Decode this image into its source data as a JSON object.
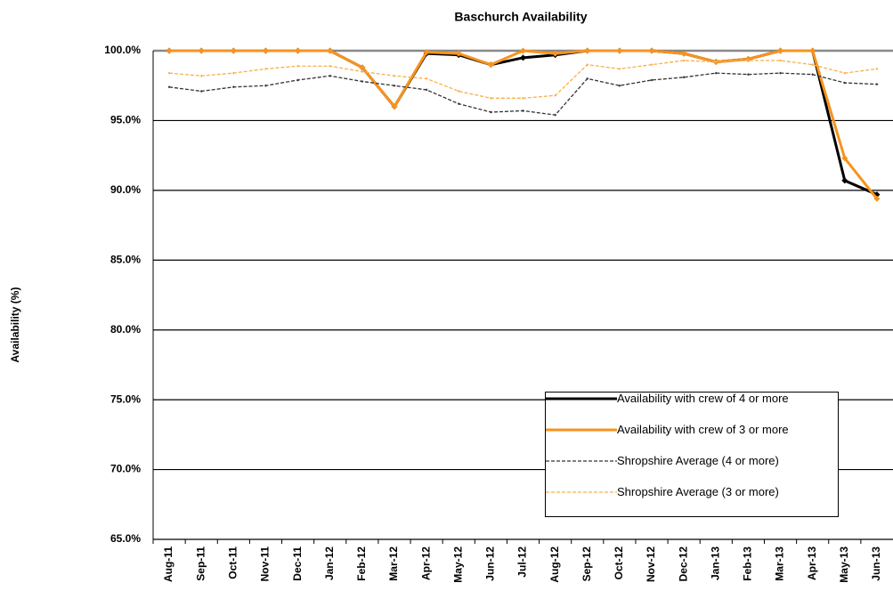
{
  "chart_data": {
    "type": "line",
    "title": "Baschurch Availability",
    "y_label": "Availability (%)",
    "categories": [
      "Aug-11",
      "Sep-11",
      "Oct-11",
      "Nov-11",
      "Dec-11",
      "Jan-12",
      "Feb-12",
      "Mar-12",
      "Apr-12",
      "May-12",
      "Jun-12",
      "Jul-12",
      "Aug-12",
      "Sep-12",
      "Oct-12",
      "Nov-12",
      "Dec-12",
      "Jan-13",
      "Feb-13",
      "Mar-13",
      "Apr-13",
      "May-13",
      "Jun-13"
    ],
    "series": [
      {
        "name": "Availability with crew of 4 or more",
        "color": "#000000",
        "dashed": false,
        "values": [
          100,
          100,
          100,
          100,
          100,
          100,
          98.8,
          96.0,
          99.8,
          99.7,
          99.0,
          99.5,
          99.7,
          100,
          100,
          100,
          99.8,
          99.2,
          99.4,
          100,
          100,
          90.7,
          89.7
        ]
      },
      {
        "name": "Availability with crew of 3 or more",
        "color": "#f7931e",
        "dashed": false,
        "values": [
          100,
          100,
          100,
          100,
          100,
          100,
          98.8,
          96.0,
          99.9,
          99.8,
          99.0,
          100,
          99.8,
          100,
          100,
          100,
          99.8,
          99.2,
          99.4,
          100,
          100,
          92.3,
          89.4
        ]
      },
      {
        "name": "Shropshire Average (4 or more)",
        "color": "#333333",
        "dashed": true,
        "values": [
          97.4,
          97.1,
          97.4,
          97.5,
          97.9,
          98.2,
          97.8,
          97.5,
          97.2,
          96.2,
          95.6,
          95.7,
          95.4,
          98.0,
          97.5,
          97.9,
          98.1,
          98.4,
          98.3,
          98.4,
          98.3,
          97.7,
          97.6
        ]
      },
      {
        "name": "Shropshire Average (3 or more)",
        "color": "#f7b04a",
        "dashed": true,
        "values": [
          98.4,
          98.2,
          98.4,
          98.7,
          98.9,
          98.9,
          98.5,
          98.2,
          98.0,
          97.1,
          96.6,
          96.6,
          96.8,
          99.0,
          98.7,
          99.0,
          99.3,
          99.2,
          99.3,
          99.3,
          99.0,
          98.4,
          98.7
        ]
      }
    ],
    "ylim": [
      65,
      100
    ],
    "yticks": [
      {
        "value": 65,
        "label": "65.0%"
      },
      {
        "value": 70,
        "label": "70.0%"
      },
      {
        "value": 75,
        "label": "75.0%"
      },
      {
        "value": 80,
        "label": "80.0%"
      },
      {
        "value": 85,
        "label": "85.0%"
      },
      {
        "value": 90,
        "label": "90.0%"
      },
      {
        "value": 95,
        "label": "95.0%"
      },
      {
        "value": 100,
        "label": "100.0%"
      }
    ],
    "grid": true
  }
}
